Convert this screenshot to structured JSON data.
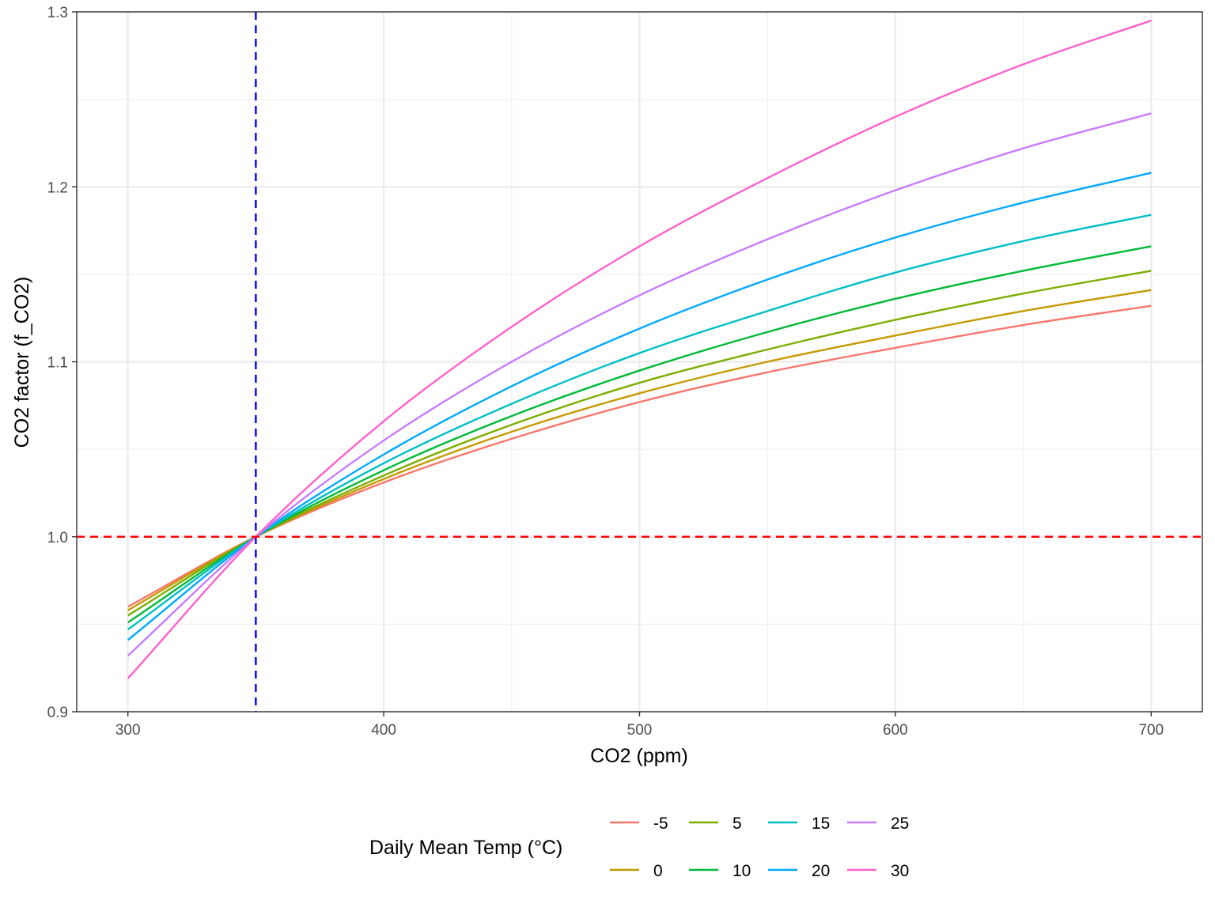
{
  "chart_data": {
    "type": "line",
    "xlabel": "CO2 (ppm)",
    "ylabel": "CO2 factor (f_CO2)",
    "xlim": [
      280,
      720
    ],
    "ylim": [
      0.9,
      1.3
    ],
    "x_ticks": [
      300,
      400,
      500,
      600,
      700
    ],
    "y_ticks": [
      0.9,
      1.0,
      1.1,
      1.2,
      1.3
    ],
    "x_tick_labels": [
      "300",
      "400",
      "500",
      "600",
      "700"
    ],
    "y_tick_labels": [
      "0.9",
      "1.0",
      "1.1",
      "1.2",
      "1.3"
    ],
    "grid": true,
    "legend": {
      "title": "Daily Mean Temp (°C)",
      "placement": "bottom"
    },
    "x": [
      300,
      350,
      400,
      450,
      500,
      550,
      600,
      650,
      700
    ],
    "series": [
      {
        "name": "-5",
        "color": "#F8766D",
        "values": [
          0.96,
          1.0,
          1.031,
          1.056,
          1.077,
          1.094,
          1.108,
          1.121,
          1.132
        ]
      },
      {
        "name": "0",
        "color": "#C49A00",
        "values": [
          0.958,
          1.0,
          1.033,
          1.06,
          1.082,
          1.1,
          1.115,
          1.129,
          1.141
        ]
      },
      {
        "name": "5",
        "color": "#7CAE00",
        "values": [
          0.955,
          1.0,
          1.035,
          1.064,
          1.088,
          1.107,
          1.124,
          1.139,
          1.152
        ]
      },
      {
        "name": "10",
        "color": "#00BA38",
        "values": [
          0.951,
          1.0,
          1.038,
          1.069,
          1.095,
          1.117,
          1.136,
          1.152,
          1.166
        ]
      },
      {
        "name": "15",
        "color": "#00BFC4",
        "values": [
          0.947,
          1.0,
          1.042,
          1.076,
          1.105,
          1.129,
          1.151,
          1.169,
          1.184
        ]
      },
      {
        "name": "20",
        "color": "#00A9FF",
        "values": [
          0.941,
          1.0,
          1.047,
          1.086,
          1.119,
          1.147,
          1.171,
          1.191,
          1.208
        ]
      },
      {
        "name": "25",
        "color": "#C77CFF",
        "values": [
          0.932,
          1.0,
          1.055,
          1.1,
          1.138,
          1.17,
          1.198,
          1.222,
          1.242
        ]
      },
      {
        "name": "30",
        "color": "#FF61CC",
        "values": [
          0.919,
          1.0,
          1.066,
          1.12,
          1.166,
          1.205,
          1.24,
          1.27,
          1.295
        ]
      }
    ],
    "reference_lines": [
      {
        "axis": "x",
        "value": 350,
        "color": "#0000FF",
        "style": "dashed"
      },
      {
        "axis": "y",
        "value": 1.0,
        "color": "#FF0000",
        "style": "dashed"
      }
    ]
  }
}
